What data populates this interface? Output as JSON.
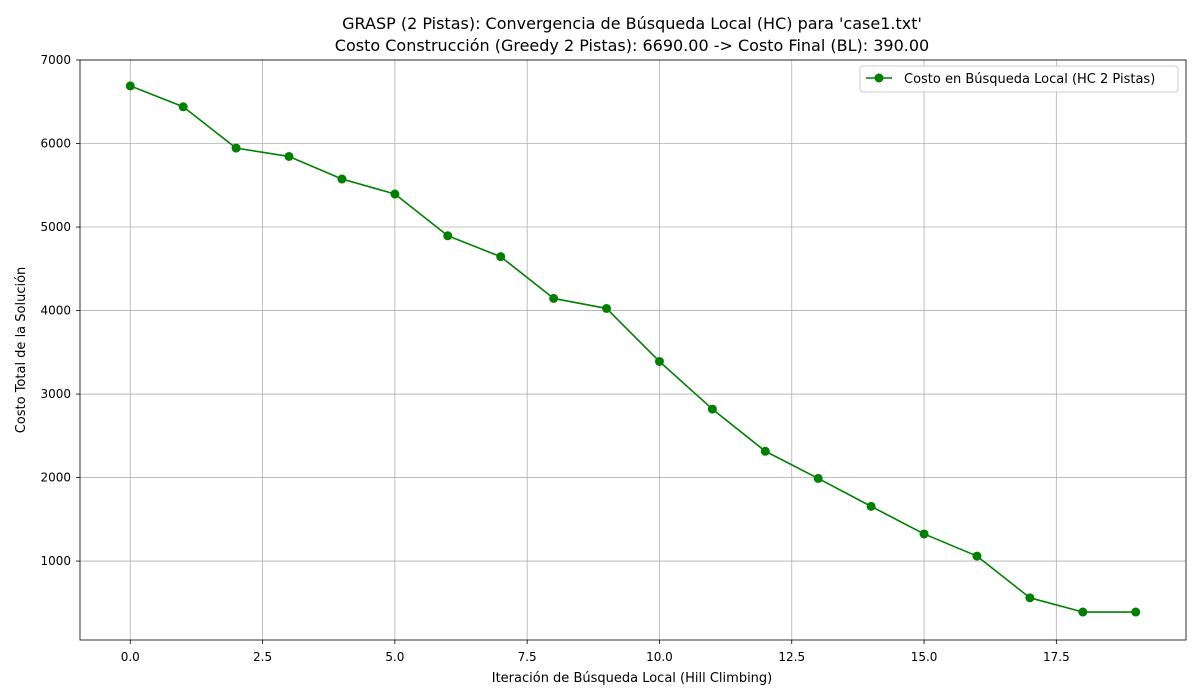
{
  "chart_data": {
    "type": "line",
    "title": [
      "GRASP (2 Pistas): Convergencia de Búsqueda Local (HC) para 'case1.txt'",
      "Costo Construcción (Greedy 2 Pistas): 6690.00 -> Costo Final (BL): 390.00"
    ],
    "xlabel": "Iteración de Búsqueda Local (Hill Climbing)",
    "ylabel": "Costo Total de la Solución",
    "xlim": [
      -0.95,
      19.95
    ],
    "ylim": [
      55,
      7000
    ],
    "xticks": [
      0,
      2.5,
      5,
      7.5,
      10,
      12.5,
      15,
      17.5
    ],
    "xtick_labels": [
      "0.0",
      "2.5",
      "5.0",
      "7.5",
      "10.0",
      "12.5",
      "15.0",
      "17.5"
    ],
    "yticks": [
      1000,
      2000,
      3000,
      4000,
      5000,
      6000,
      7000
    ],
    "ytick_labels": [
      "1000",
      "2000",
      "3000",
      "4000",
      "5000",
      "6000",
      "7000"
    ],
    "grid": true,
    "legend_position": "top-right",
    "series": [
      {
        "name": "Costo en Búsqueda Local (HC 2 Pistas)",
        "color": "#008000",
        "marker": "circle",
        "x": [
          0,
          1,
          2,
          3,
          4,
          5,
          6,
          7,
          8,
          9,
          10,
          11,
          12,
          13,
          14,
          15,
          16,
          17,
          18,
          19
        ],
        "y": [
          6690,
          6440,
          5945,
          5845,
          5575,
          5395,
          4895,
          4645,
          4145,
          4025,
          3390,
          2820,
          2315,
          1990,
          1655,
          1325,
          1060,
          560,
          390,
          390
        ]
      }
    ]
  }
}
